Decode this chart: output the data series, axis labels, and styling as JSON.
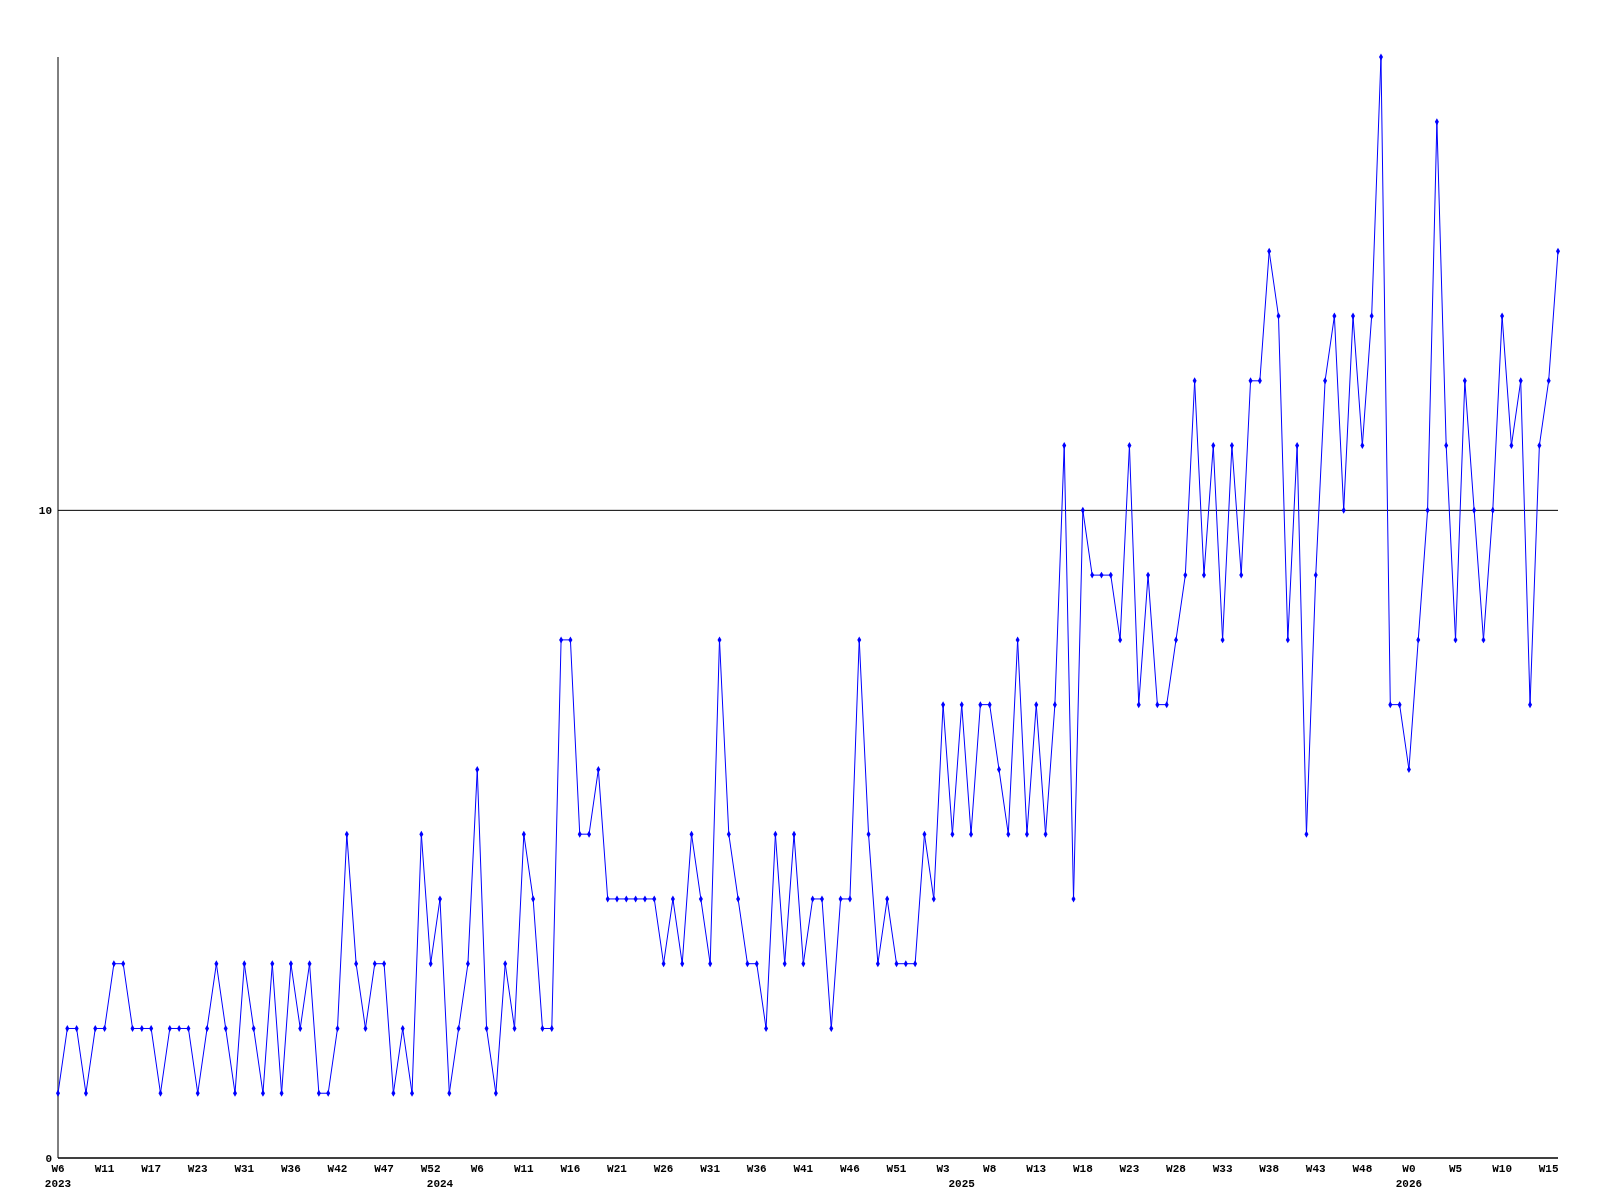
{
  "chart_data": {
    "type": "line",
    "categories": [
      "W6\n2023",
      null,
      null,
      null,
      null,
      "W11",
      null,
      null,
      null,
      null,
      "W17",
      null,
      null,
      null,
      null,
      "W23",
      null,
      null,
      null,
      null,
      "W31",
      null,
      null,
      null,
      null,
      "W36",
      null,
      null,
      null,
      null,
      "W42",
      null,
      null,
      null,
      null,
      "W47",
      null,
      null,
      null,
      null,
      "W52",
      "\n2024",
      null,
      null,
      null,
      "W6",
      null,
      null,
      null,
      null,
      "W11",
      null,
      null,
      null,
      null,
      "W16",
      null,
      null,
      null,
      null,
      "W21",
      null,
      null,
      null,
      null,
      "W26",
      null,
      null,
      null,
      null,
      "W31",
      null,
      null,
      null,
      null,
      "W36",
      null,
      null,
      null,
      null,
      "W41",
      null,
      null,
      null,
      null,
      "W46",
      null,
      null,
      null,
      null,
      "W51",
      null,
      null,
      null,
      null,
      "W3",
      null,
      "\n2025",
      null,
      null,
      "W8",
      null,
      null,
      null,
      null,
      "W13",
      null,
      null,
      null,
      null,
      "W18",
      null,
      null,
      null,
      null,
      "W23",
      null,
      null,
      null,
      null,
      "W28",
      null,
      null,
      null,
      null,
      "W33",
      null,
      null,
      null,
      null,
      "W38",
      null,
      null,
      null,
      null,
      "W43",
      null,
      null,
      null,
      null,
      "W48",
      null,
      null,
      null,
      null,
      "W0\n2026",
      null,
      null,
      null,
      null,
      "W5",
      null,
      null,
      null,
      null,
      "W10",
      null,
      null,
      null,
      null,
      "W15",
      null
    ],
    "series": [
      {
        "color": "#0000ff",
        "values": [
          1,
          2,
          2,
          1,
          2,
          2,
          3,
          3,
          2,
          2,
          2,
          1,
          2,
          2,
          2,
          1,
          2,
          3,
          2,
          1,
          3,
          2,
          1,
          3,
          1,
          3,
          2,
          3,
          1,
          1,
          2,
          5,
          3,
          2,
          3,
          3,
          1,
          2,
          1,
          5,
          3,
          4,
          1,
          2,
          3,
          6,
          2,
          1,
          3,
          2,
          5,
          4,
          2,
          2,
          8,
          8,
          5,
          5,
          6,
          4,
          4,
          4,
          4,
          4,
          4,
          3,
          4,
          3,
          5,
          4,
          3,
          8,
          5,
          4,
          3,
          3,
          2,
          5,
          3,
          5,
          3,
          4,
          4,
          2,
          4,
          4,
          8,
          5,
          3,
          4,
          3,
          3,
          3,
          5,
          4,
          7,
          5,
          7,
          5,
          7,
          7,
          6,
          5,
          8,
          5,
          7,
          5,
          7,
          11,
          4,
          10,
          9,
          9,
          9,
          8,
          11,
          7,
          9,
          7,
          7,
          8,
          9,
          12,
          9,
          11,
          8,
          11,
          9,
          12,
          12,
          14,
          13,
          8,
          11,
          5,
          9,
          12,
          13,
          10,
          13,
          11,
          13,
          17,
          7,
          7,
          6,
          8,
          10,
          16,
          11,
          8,
          12,
          10,
          8,
          10,
          13,
          11,
          12,
          7,
          11,
          12,
          14
        ]
      }
    ],
    "ylim": [
      0,
      17
    ],
    "yticks": [
      0,
      10
    ],
    "grid": "y",
    "marker": "diamond",
    "line_style": "solid"
  }
}
